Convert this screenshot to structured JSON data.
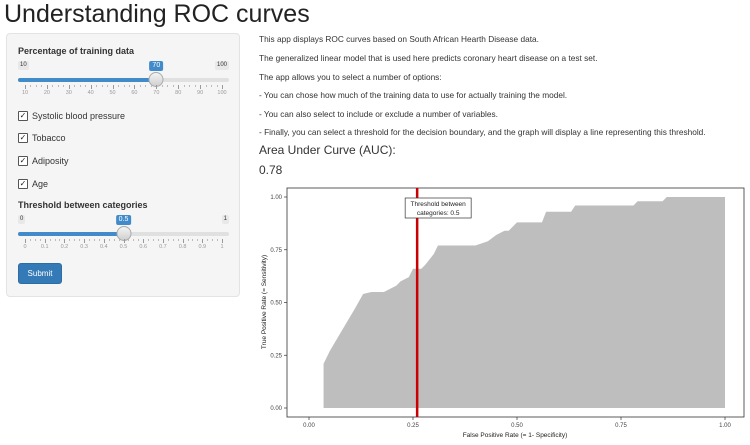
{
  "app": {
    "title": "Understanding ROC curves"
  },
  "sidebar": {
    "training_slider": {
      "label": "Percentage of training data",
      "min": 10,
      "max": 100,
      "value": 70,
      "min_label": "10",
      "max_label": "100",
      "value_label": "70",
      "tick_labels": [
        "10",
        "20",
        "30",
        "40",
        "50",
        "60",
        "70",
        "80",
        "90",
        "100"
      ]
    },
    "variables": [
      {
        "label": "Systolic blood pressure",
        "checked": true
      },
      {
        "label": "Tobacco",
        "checked": true
      },
      {
        "label": "Adiposity",
        "checked": true
      },
      {
        "label": "Age",
        "checked": true
      }
    ],
    "threshold_slider": {
      "label": "Threshold between categories",
      "min": 0,
      "max": 1,
      "value": 0.5,
      "min_label": "0",
      "max_label": "1",
      "value_label": "0.5",
      "tick_labels": [
        "0",
        "0.1",
        "0.2",
        "0.3",
        "0.4",
        "0.5",
        "0.6",
        "0.7",
        "0.8",
        "0.9",
        "1"
      ]
    },
    "submit_label": "Submit"
  },
  "main": {
    "description": [
      "This app displays ROC curves based on South African Hearth Disease data.",
      "The generalized linear model that is used here predicts coronary heart disease on a test set.",
      "The app allows you to select a number of options:",
      "- You can chose how much of the training data to use for actually training the model.",
      "- You can also select to include or exclude a number of variables.",
      "- Finally, you can select a threshold for the decision boundary, and the graph will display a line representing this threshold."
    ],
    "auc_heading": "Area Under Curve (AUC):",
    "auc_value": "0.78"
  },
  "chart_data": {
    "type": "area",
    "xlabel": "False Positive Rate (= 1- Specificity)",
    "ylabel": "True Positive Rate (= Sensitivity)",
    "xlim": [
      0,
      1
    ],
    "ylim": [
      0,
      1
    ],
    "xticks": [
      0.0,
      0.25,
      0.5,
      0.75,
      1.0
    ],
    "xtick_labels": [
      "0.00",
      "0.25",
      "0.50",
      "0.75",
      "1.00"
    ],
    "yticks": [
      0.0,
      0.25,
      0.5,
      0.75,
      1.0
    ],
    "ytick_labels": [
      "0.00",
      "0.25",
      "0.50",
      "0.75",
      "1.00"
    ],
    "fill_color": "#bebebe",
    "threshold_line_color": "#cc0000",
    "threshold_line_x": 0.26,
    "threshold_annotation": [
      "Threshold between",
      "categories: 0.5"
    ],
    "grid": false,
    "roc_points": [
      [
        0.035,
        0.21
      ],
      [
        0.035,
        0.21
      ],
      [
        0.05,
        0.27
      ],
      [
        0.08,
        0.37
      ],
      [
        0.11,
        0.47
      ],
      [
        0.13,
        0.54
      ],
      [
        0.15,
        0.55
      ],
      [
        0.18,
        0.55
      ],
      [
        0.21,
        0.58
      ],
      [
        0.22,
        0.6
      ],
      [
        0.24,
        0.62
      ],
      [
        0.25,
        0.66
      ],
      [
        0.27,
        0.66
      ],
      [
        0.28,
        0.68
      ],
      [
        0.3,
        0.73
      ],
      [
        0.31,
        0.77
      ],
      [
        0.4,
        0.77
      ],
      [
        0.43,
        0.79
      ],
      [
        0.45,
        0.82
      ],
      [
        0.47,
        0.84
      ],
      [
        0.48,
        0.84
      ],
      [
        0.5,
        0.88
      ],
      [
        0.56,
        0.88
      ],
      [
        0.57,
        0.93
      ],
      [
        0.63,
        0.93
      ],
      [
        0.64,
        0.96
      ],
      [
        0.78,
        0.96
      ],
      [
        0.79,
        0.98
      ],
      [
        0.85,
        0.98
      ],
      [
        0.86,
        1.0
      ],
      [
        1.0,
        1.0
      ]
    ]
  }
}
